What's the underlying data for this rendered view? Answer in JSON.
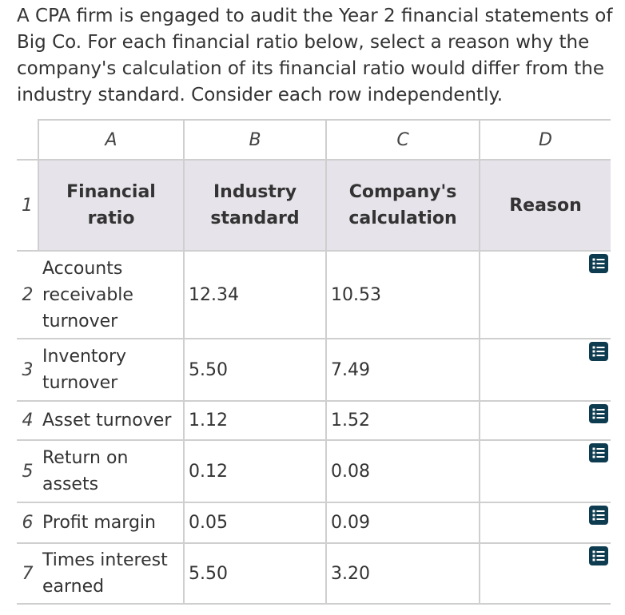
{
  "question": {
    "text": "A CPA firm is engaged to audit the Year 2 financial statements of Big Co. For each financial ratio below, select a reason why the company's calculation of its financial ratio would differ from the industry standard. Consider each row independently."
  },
  "table": {
    "column_letters": [
      "A",
      "B",
      "C",
      "D"
    ],
    "header": {
      "row_number": "1",
      "financial_ratio": "Financial ratio",
      "industry_standard": "Industry standard",
      "company_calculation": "Company's calculation",
      "reason": "Reason"
    },
    "rows": [
      {
        "row_number": "2",
        "ratio": "Accounts receivable turnover",
        "industry": "12.34",
        "company": "10.53",
        "reason_icon": "list-dropdown-icon"
      },
      {
        "row_number": "3",
        "ratio": "Inventory turnover",
        "industry": "5.50",
        "company": "7.49",
        "reason_icon": "list-dropdown-icon"
      },
      {
        "row_number": "4",
        "ratio": "Asset turnover",
        "industry": "1.12",
        "company": "1.52",
        "reason_icon": "list-dropdown-icon"
      },
      {
        "row_number": "5",
        "ratio": "Return on assets",
        "industry": "0.12",
        "company": "0.08",
        "reason_icon": "list-dropdown-icon"
      },
      {
        "row_number": "6",
        "ratio": "Profit margin",
        "industry": "0.05",
        "company": "0.09",
        "reason_icon": "list-dropdown-icon"
      },
      {
        "row_number": "7",
        "ratio": "Times interest earned",
        "industry": "5.50",
        "company": "3.20",
        "reason_icon": "list-dropdown-icon"
      }
    ]
  },
  "colors": {
    "header_background": "#e7e3ea",
    "grid_border": "#cfcfcf",
    "dropdown_button": "#0d3b4f"
  }
}
